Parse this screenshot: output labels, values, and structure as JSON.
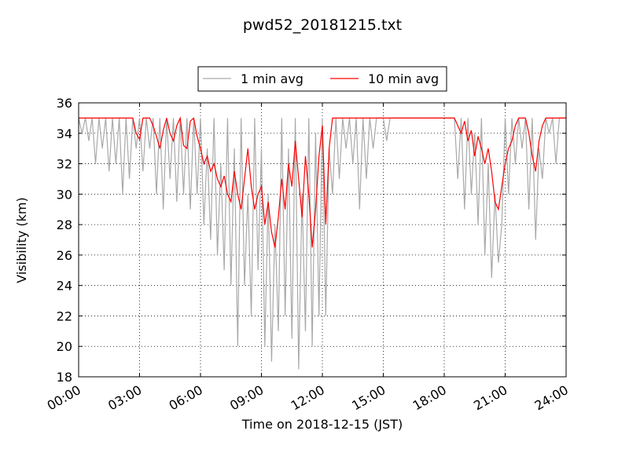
{
  "chart_data": {
    "type": "line",
    "title": "pwd52_20181215.txt",
    "xlabel": "Time on 2018-12-15 (JST)",
    "ylabel": "Visibility (km)",
    "xlim": [
      0,
      1440
    ],
    "ylim": [
      18,
      36
    ],
    "xticks": [
      {
        "value": 0,
        "label": "00:00"
      },
      {
        "value": 180,
        "label": "03:00"
      },
      {
        "value": 360,
        "label": "06:00"
      },
      {
        "value": 540,
        "label": "09:00"
      },
      {
        "value": 720,
        "label": "12:00"
      },
      {
        "value": 900,
        "label": "15:00"
      },
      {
        "value": 1080,
        "label": "18:00"
      },
      {
        "value": 1260,
        "label": "21:00"
      },
      {
        "value": 1440,
        "label": "24:00"
      }
    ],
    "yticks": [
      18,
      20,
      22,
      24,
      26,
      28,
      30,
      32,
      34,
      36
    ],
    "grid": true,
    "legend": "upper center",
    "x": [
      0,
      10,
      20,
      30,
      40,
      50,
      60,
      70,
      80,
      90,
      100,
      110,
      120,
      130,
      140,
      150,
      160,
      170,
      180,
      190,
      200,
      210,
      220,
      230,
      240,
      250,
      260,
      270,
      280,
      290,
      300,
      310,
      320,
      330,
      340,
      350,
      360,
      370,
      380,
      390,
      400,
      410,
      420,
      430,
      440,
      450,
      460,
      470,
      480,
      490,
      500,
      510,
      520,
      530,
      540,
      550,
      560,
      570,
      580,
      590,
      600,
      610,
      620,
      630,
      640,
      650,
      660,
      670,
      680,
      690,
      700,
      710,
      720,
      730,
      740,
      750,
      760,
      770,
      780,
      790,
      800,
      810,
      820,
      830,
      840,
      850,
      860,
      870,
      880,
      890,
      900,
      910,
      920,
      930,
      940,
      950,
      960,
      970,
      980,
      990,
      1000,
      1010,
      1020,
      1030,
      1040,
      1050,
      1060,
      1070,
      1080,
      1090,
      1100,
      1110,
      1120,
      1130,
      1140,
      1150,
      1160,
      1170,
      1180,
      1190,
      1200,
      1210,
      1220,
      1230,
      1240,
      1250,
      1260,
      1270,
      1280,
      1290,
      1300,
      1310,
      1320,
      1330,
      1340,
      1350,
      1360,
      1370,
      1380,
      1390,
      1400,
      1410,
      1420,
      1430,
      1440
    ],
    "series": [
      {
        "name": "1 min avg",
        "color": "#a9a9a9",
        "values": [
          35,
          34,
          35,
          33.5,
          35,
          32,
          35,
          33,
          35,
          31.5,
          35,
          32,
          35,
          30,
          35,
          31,
          35,
          33,
          35,
          31.5,
          35,
          33,
          35,
          30,
          35,
          29,
          35,
          31,
          35,
          29.5,
          35,
          30,
          35,
          29,
          35,
          30,
          35,
          28,
          33,
          27,
          35,
          26,
          32,
          25,
          35,
          24,
          33,
          20,
          35,
          24,
          30,
          22,
          35,
          25,
          33,
          20,
          30,
          19,
          28,
          21,
          35,
          22,
          33,
          20.5,
          35,
          18.5,
          30,
          21,
          35,
          20,
          34,
          22,
          35,
          22,
          33,
          30,
          35,
          31,
          35,
          33,
          35,
          32,
          35,
          29,
          35,
          31,
          35,
          33,
          35,
          35,
          35,
          33.5,
          35,
          35,
          35,
          35,
          35,
          35,
          35,
          35,
          35,
          35,
          35,
          35,
          35,
          35,
          35,
          35,
          35,
          35,
          35,
          35,
          31,
          35,
          29,
          35,
          30,
          34,
          28,
          35,
          26,
          32,
          24.5,
          30,
          25.5,
          28,
          35,
          30,
          35,
          32,
          35,
          33,
          35,
          29,
          35,
          27,
          33,
          31,
          35,
          34,
          35,
          32,
          35,
          35,
          35
        ]
      },
      {
        "name": "10 min avg",
        "color": "#ff0000",
        "values": [
          35,
          35,
          35,
          35,
          35,
          35,
          35,
          35,
          35,
          35,
          35,
          35,
          35,
          35,
          35,
          35,
          35,
          34,
          33.6,
          35,
          35,
          35,
          34.5,
          33.8,
          33,
          34.2,
          35,
          34,
          33.5,
          34.5,
          35,
          33.2,
          33,
          34.8,
          35,
          33.8,
          33,
          32,
          32.5,
          31.5,
          32,
          31,
          30.5,
          31.2,
          30,
          29.5,
          31.5,
          30,
          29,
          31,
          33,
          30.5,
          29,
          30,
          30.5,
          28,
          29.5,
          27.5,
          26.5,
          28.5,
          31,
          29,
          32,
          30.5,
          33.5,
          31,
          28.5,
          32.5,
          30,
          26.5,
          29,
          32.5,
          34.5,
          28,
          33,
          35,
          35,
          35,
          35,
          35,
          35,
          35,
          35,
          35,
          35,
          35,
          35,
          35,
          35,
          35,
          35,
          35,
          35,
          35,
          35,
          35,
          35,
          35,
          35,
          35,
          35,
          35,
          35,
          35,
          35,
          35,
          35,
          35,
          35,
          35,
          35,
          35,
          34.5,
          34,
          34.8,
          33.5,
          34.2,
          32.5,
          33.8,
          33,
          32,
          33,
          31.5,
          29.5,
          29,
          30.5,
          32,
          33,
          33.5,
          34.5,
          35,
          35,
          35,
          34,
          32.5,
          31.5,
          33.5,
          34.5,
          35,
          35,
          35,
          35,
          35,
          35,
          35
        ]
      }
    ]
  }
}
